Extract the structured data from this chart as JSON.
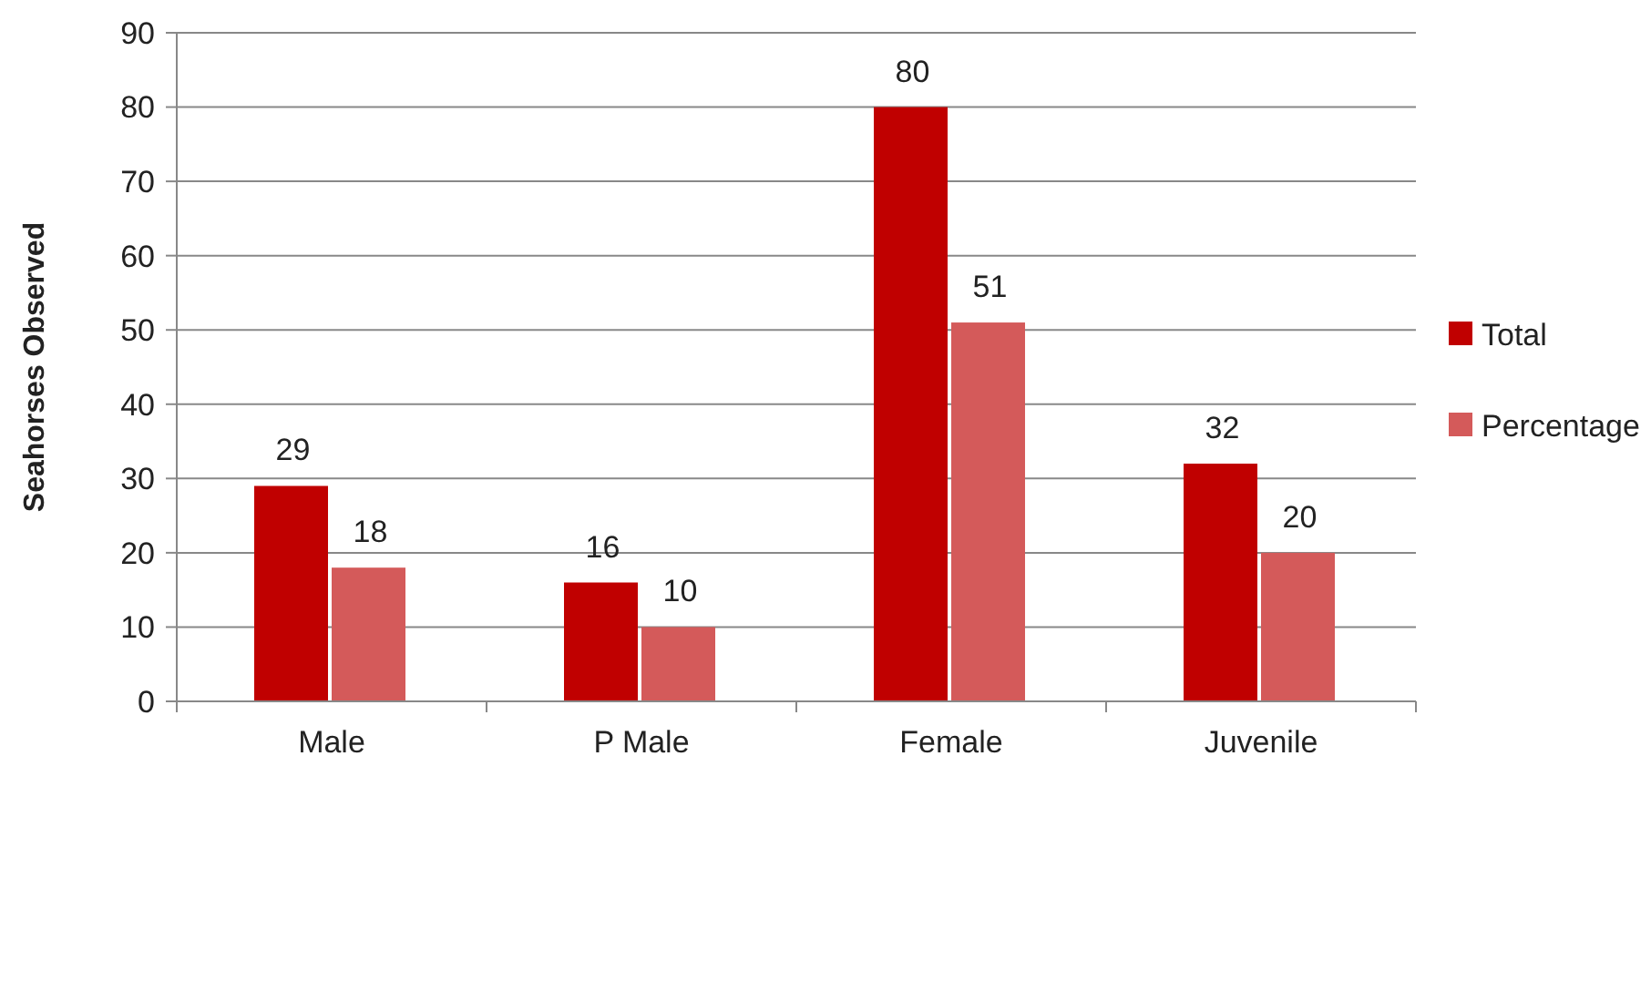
{
  "chart_data": {
    "type": "bar",
    "ylabel": "Seahorses Observed",
    "categories": [
      "Male",
      "P Male",
      "Female",
      "Juvenile"
    ],
    "series": [
      {
        "name": "Total",
        "color": "#c00000",
        "values": [
          29,
          16,
          80,
          32
        ]
      },
      {
        "name": "Percentage",
        "color": "#d45a5a",
        "values": [
          18,
          10,
          51,
          20
        ]
      }
    ],
    "ylim": [
      0,
      90
    ],
    "yticks": [
      0,
      10,
      20,
      30,
      40,
      50,
      60,
      70,
      80,
      90
    ],
    "grid": "y",
    "legend": "right",
    "data_labels": true
  }
}
